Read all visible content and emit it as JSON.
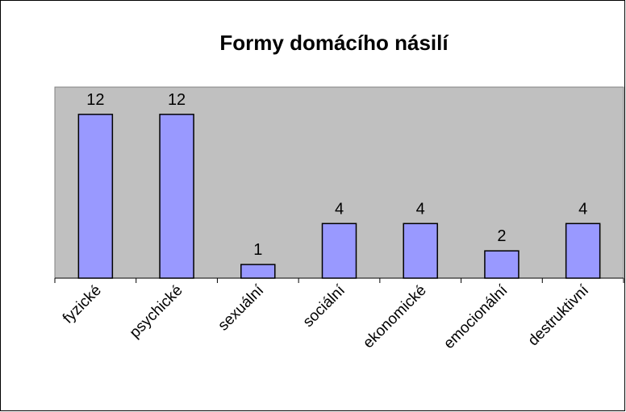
{
  "chart_data": {
    "type": "bar",
    "title": "Formy domácího násilí",
    "categories": [
      "fyzické",
      "psychické",
      "sexuální",
      "sociální",
      "ekonomické",
      "emocionální",
      "destruktivní"
    ],
    "values": [
      12,
      12,
      1,
      4,
      4,
      2,
      4
    ],
    "color": "#9999ff",
    "ylim": [
      0,
      14
    ]
  }
}
